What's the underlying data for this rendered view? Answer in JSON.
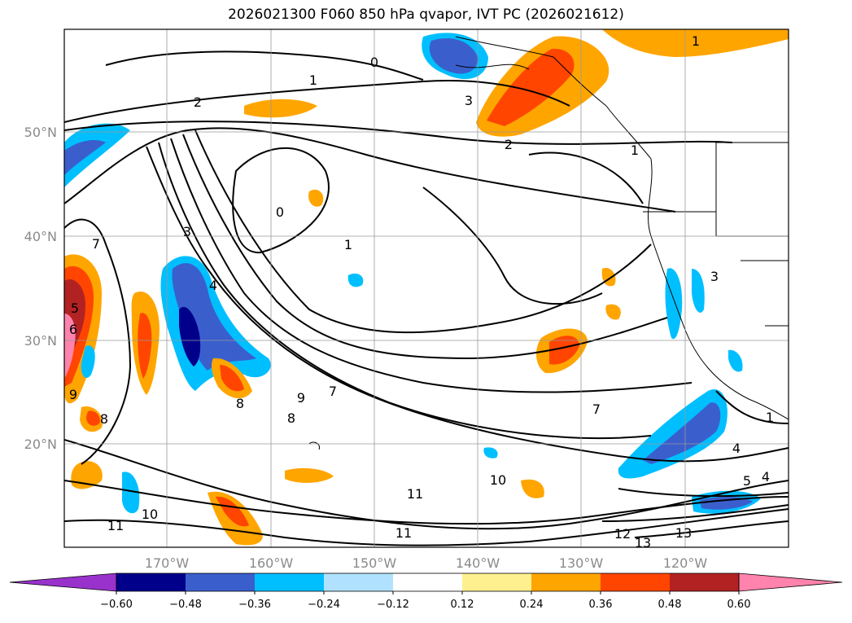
{
  "title": "2026021300 F060 850 hPa qvapor, IVT PC (2026021612)",
  "lon_labels": [
    "170°W",
    "160°W",
    "150°W",
    "140°W",
    "130°W",
    "120°W"
  ],
  "lat_labels": [
    "50°N",
    "40°N",
    "30°N",
    "20°N"
  ],
  "colorbar": {
    "ticks": [
      "−0.60",
      "−0.48",
      "−0.36",
      "−0.24",
      "−0.12",
      "0.12",
      "0.24",
      "0.36",
      "0.48",
      "0.60"
    ],
    "colors": [
      "#9932cc",
      "#00008b",
      "#3a5fcd",
      "#00bfff",
      "#b0e2ff",
      "#ffffff",
      "#fff08f",
      "#ffa500",
      "#ff4500",
      "#b22222",
      "#ff83ac"
    ]
  },
  "contour_labels": [
    "0",
    "1",
    "2",
    "3",
    "2",
    "1",
    "0",
    "1",
    "1",
    "3",
    "4",
    "5",
    "6",
    "7",
    "8",
    "9",
    "7",
    "10",
    "11",
    "11",
    "10",
    "11",
    "12",
    "13",
    "13",
    "5",
    "4",
    "4",
    "3",
    "7",
    "8",
    "8",
    "9",
    "1"
  ]
}
